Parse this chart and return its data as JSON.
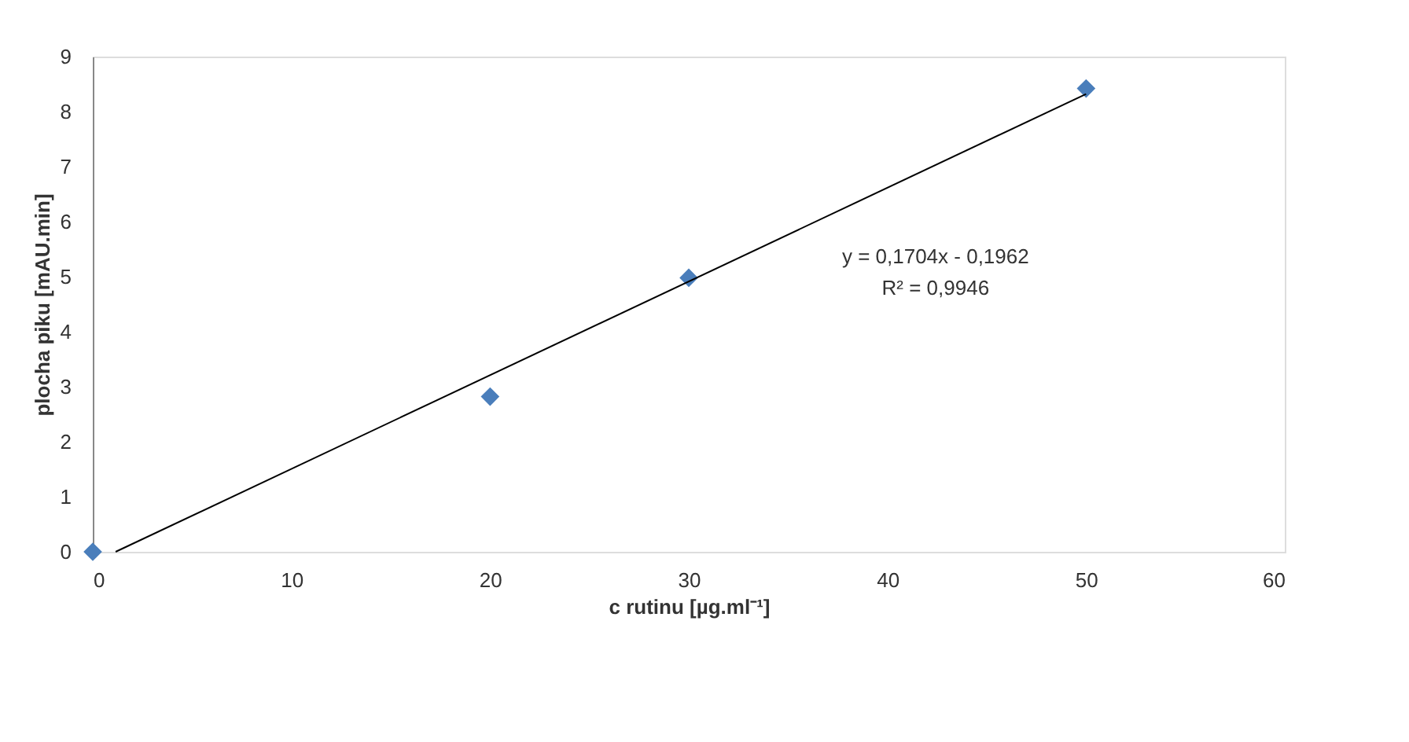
{
  "chart_data": {
    "type": "scatter",
    "xlabel": "c rutinu [µg.ml⁻¹]",
    "ylabel": "plocha piku [mAU.min]",
    "x": [
      0,
      20,
      30,
      50
    ],
    "series": [
      {
        "color": "#4a7ebb",
        "values": [
          0,
          2.82,
          4.98,
          8.42
        ],
        "marker": "diamond"
      },
      {
        "type": "line",
        "color": "#000000",
        "x": [
          1.15,
          50
        ],
        "values": [
          0,
          8.32
        ]
      }
    ],
    "annotations": [
      "y = 0,1704x - 0,1962",
      "R² = 0,9946"
    ],
    "xlim": [
      0,
      60
    ],
    "xticks": [
      0,
      10,
      20,
      30,
      40,
      50,
      60
    ],
    "ylim": [
      0,
      9
    ],
    "yticks": [
      0,
      1,
      2,
      3,
      4,
      5,
      6,
      7,
      8,
      9
    ],
    "grid": false
  }
}
